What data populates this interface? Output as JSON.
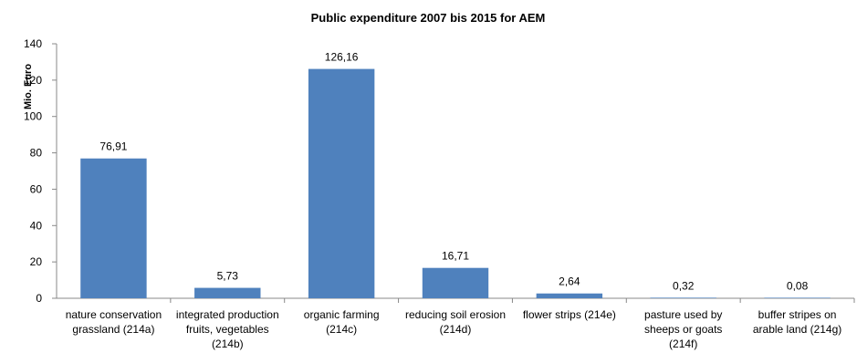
{
  "chart_data": {
    "type": "bar",
    "title": "Public expenditure 2007 bis 2015 for AEM",
    "xlabel": "",
    "ylabel": "Mio. Euro",
    "ylim": [
      0,
      140
    ],
    "yticks": [
      0,
      20,
      40,
      60,
      80,
      100,
      120,
      140
    ],
    "grid": false,
    "bar_color": "#4F81BD",
    "categories": [
      [
        "nature conservation",
        "grassland (214a)"
      ],
      [
        "integrated production",
        "fruits, vegetables",
        "(214b)"
      ],
      [
        "organic farming",
        "(214c)"
      ],
      [
        "reducing soil erosion",
        "(214d)"
      ],
      [
        "flower strips (214e)"
      ],
      [
        "pasture used by",
        "sheeps or goats",
        "(214f)"
      ],
      [
        "buffer stripes on",
        "arable land (214g)"
      ]
    ],
    "values": [
      76.91,
      5.73,
      126.16,
      16.71,
      2.64,
      0.32,
      0.08
    ],
    "value_labels": [
      "76,91",
      "5,73",
      "126,16",
      "16,71",
      "2,64",
      "0,32",
      "0,08"
    ]
  }
}
